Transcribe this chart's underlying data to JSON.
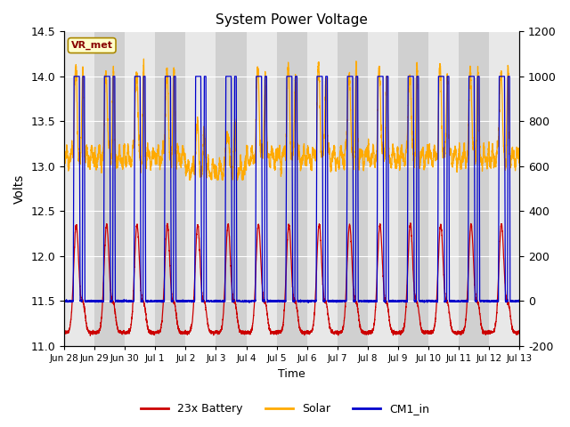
{
  "title": "System Power Voltage",
  "xlabel": "Time",
  "ylabel": "Volts",
  "ylim_left": [
    11.0,
    14.5
  ],
  "ylim_right": [
    -200,
    1200
  ],
  "yticks_left": [
    11.0,
    11.5,
    12.0,
    12.5,
    13.0,
    13.5,
    14.0,
    14.5
  ],
  "yticks_right": [
    -200,
    0,
    200,
    400,
    600,
    800,
    1000,
    1200
  ],
  "colors": {
    "battery": "#cc0000",
    "solar": "#ffaa00",
    "cm1_in": "#0000cc",
    "bg_light": "#e8e8e8",
    "bg_dark": "#d0d0d0",
    "grid": "#ffffff",
    "annotation_bg": "#ffffcc",
    "annotation_border": "#aa8800",
    "annotation_text": "#880000"
  },
  "annotation_text": "VR_met",
  "legend_labels": [
    "23x Battery",
    "Solar",
    "CM1_in"
  ],
  "xtick_labels": [
    "Jun 28",
    "Jun 29",
    "Jun 30",
    "Jul 1",
    "Jul 2",
    "Jul 3",
    "Jul 4",
    "Jul 5",
    "Jul 6",
    "Jul 7",
    "Jul 8",
    "Jul 9",
    "Jul 10",
    "Jul 11",
    "Jul 12",
    "Jul 13"
  ],
  "n_days": 15,
  "points_per_day": 288
}
